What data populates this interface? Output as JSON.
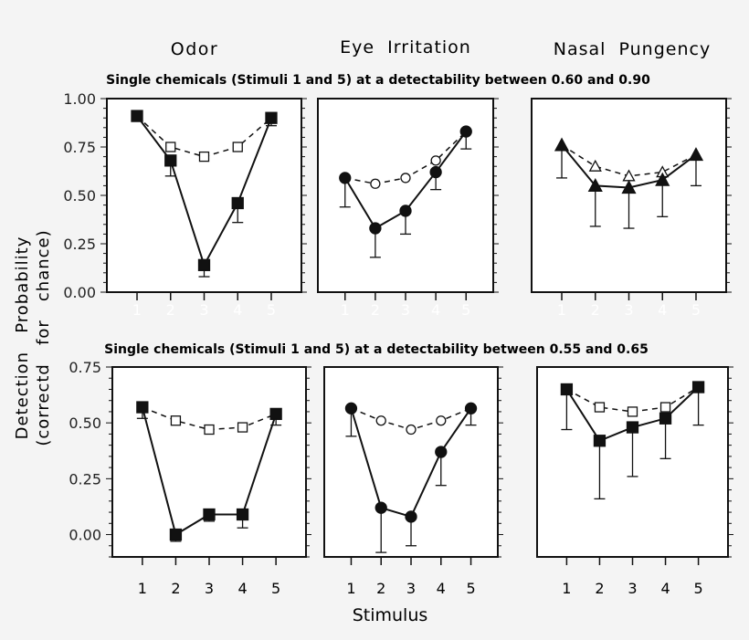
{
  "chart_data": {
    "type": "line",
    "column_titles": [
      "Odor",
      "Eye  Irritation",
      "Nasal  Pungency"
    ],
    "ylabel_line1": "Detection   Probability",
    "ylabel_line2": "(correctd   for   chance)",
    "xlabel": "Stimulus",
    "x": [
      1,
      2,
      3,
      4,
      5
    ],
    "x_tick_labels": [
      "1",
      "2",
      "3",
      "4",
      "5"
    ],
    "rows": [
      {
        "subtitle": "Single chemicals (Stimuli 1 and 5) at a detectability between 0.60 and 0.90",
        "ylim": [
          0,
          1
        ],
        "y_ticks": [
          "0.00",
          "0.25",
          "0.50",
          "0.75",
          "1.00"
        ],
        "x_tick_color": "#ffffff",
        "panels": [
          {
            "marker": "square",
            "observed": [
              0.91,
              0.68,
              0.14,
              0.46,
              0.9
            ],
            "predicted": [
              0.91,
              0.75,
              0.7,
              0.75,
              0.9
            ],
            "error_lower": [
              0.91,
              0.6,
              0.08,
              0.36,
              0.86
            ]
          },
          {
            "marker": "circle",
            "observed": [
              0.59,
              0.33,
              0.42,
              0.62,
              0.83
            ],
            "predicted": [
              0.59,
              0.56,
              0.59,
              0.68,
              0.83
            ],
            "error_lower": [
              0.44,
              0.18,
              0.3,
              0.53,
              0.74
            ]
          },
          {
            "marker": "triangle",
            "observed": [
              0.76,
              0.55,
              0.54,
              0.58,
              0.71
            ],
            "predicted": [
              0.76,
              0.65,
              0.6,
              0.62,
              0.71
            ],
            "error_lower": [
              0.59,
              0.34,
              0.33,
              0.39,
              0.55
            ]
          }
        ]
      },
      {
        "subtitle": "Single chemicals (Stimuli 1 and 5) at a detectability between 0.55 and 0.65",
        "ylim": [
          -0.1,
          0.75
        ],
        "y_ticks": [
          "0.00",
          "0.25",
          "0.50",
          "0.75"
        ],
        "x_tick_color": "#000000",
        "panels": [
          {
            "marker": "square",
            "observed": [
              0.57,
              0.0,
              0.09,
              0.09,
              0.54
            ],
            "predicted": [
              0.57,
              0.51,
              0.47,
              0.48,
              0.54
            ],
            "error_lower": [
              0.52,
              -0.03,
              0.06,
              0.03,
              0.49
            ]
          },
          {
            "marker": "circle",
            "observed": [
              0.565,
              0.12,
              0.08,
              0.37,
              0.565
            ],
            "predicted": [
              0.565,
              0.51,
              0.47,
              0.51,
              0.565
            ],
            "error_lower": [
              0.44,
              -0.08,
              -0.05,
              0.22,
              0.49
            ]
          },
          {
            "marker": "square",
            "observed": [
              0.65,
              0.42,
              0.48,
              0.52,
              0.66
            ],
            "predicted": [
              0.65,
              0.57,
              0.55,
              0.57,
              0.66
            ],
            "error_lower": [
              0.47,
              0.16,
              0.26,
              0.34,
              0.49
            ]
          }
        ]
      }
    ],
    "grid": false,
    "legend": "none"
  }
}
